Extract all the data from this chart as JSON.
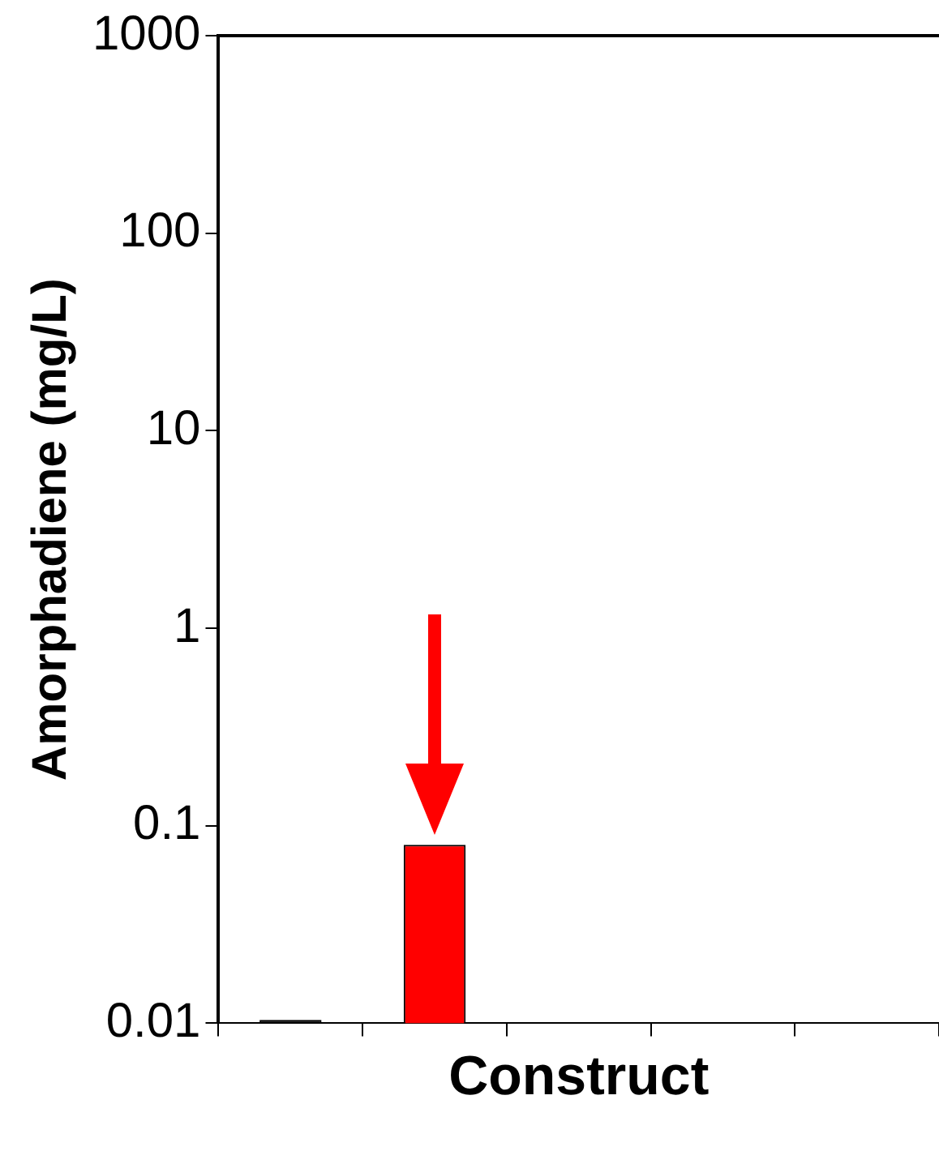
{
  "chart_data": {
    "type": "bar",
    "xlabel": "Construct",
    "ylabel": "Amorphadiene (mg/L)",
    "categories": [
      null,
      null,
      null,
      null,
      null
    ],
    "values": [
      0.0104,
      0.08,
      null,
      null,
      null
    ],
    "colors": [
      "#000000",
      "#ff0000",
      "#ff0000",
      "#ff0000",
      "#ff0000"
    ],
    "ylim": [
      0.01,
      1000
    ],
    "yticks": [
      0.01,
      0.1,
      1,
      10,
      100,
      1000
    ],
    "log": true,
    "grid": false,
    "legend": false
  }
}
